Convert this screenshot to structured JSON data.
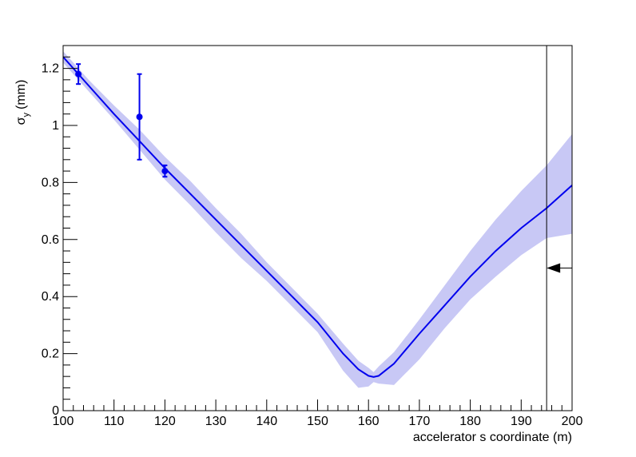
{
  "chart_data": {
    "type": "line",
    "xlabel": "accelerator s coordinate (m)",
    "ylabel_main": "σ",
    "ylabel_sub": "y",
    "ylabel_unit": "(mm)",
    "xlim": [
      100,
      200
    ],
    "ylim": [
      0,
      1.28
    ],
    "x_ticks": [
      100,
      110,
      120,
      130,
      140,
      150,
      160,
      170,
      180,
      190,
      200
    ],
    "x_tick_labels": [
      "100",
      "110",
      "120",
      "130",
      "140",
      "150",
      "160",
      "170",
      "180",
      "190",
      "200"
    ],
    "y_ticks": [
      0,
      0.2,
      0.4,
      0.6,
      0.8,
      1.0,
      1.2
    ],
    "y_tick_labels": [
      "0",
      "0.2",
      "0.4",
      "0.6",
      "0.8",
      "1",
      "1.2"
    ],
    "grid": false,
    "colors": {
      "line": "#0000ee",
      "band": "#c8c8f5",
      "marker": "#0000ee",
      "axis": "#000000"
    },
    "fit_curve": {
      "x": [
        100,
        105,
        110,
        115,
        120,
        125,
        130,
        135,
        140,
        145,
        150,
        155,
        158,
        160,
        161,
        162,
        165,
        170,
        175,
        180,
        185,
        190,
        195,
        200
      ],
      "y": [
        1.24,
        1.14,
        1.04,
        0.945,
        0.85,
        0.76,
        0.67,
        0.58,
        0.49,
        0.4,
        0.31,
        0.2,
        0.145,
        0.122,
        0.118,
        0.122,
        0.165,
        0.27,
        0.37,
        0.47,
        0.56,
        0.64,
        0.71,
        0.79
      ],
      "upper": [
        1.26,
        1.16,
        1.07,
        0.985,
        0.89,
        0.805,
        0.71,
        0.62,
        0.52,
        0.43,
        0.34,
        0.235,
        0.175,
        0.15,
        0.135,
        0.155,
        0.205,
        0.32,
        0.44,
        0.56,
        0.67,
        0.77,
        0.86,
        0.97
      ],
      "lower": [
        1.22,
        1.12,
        1.02,
        0.915,
        0.81,
        0.72,
        0.625,
        0.535,
        0.455,
        0.365,
        0.275,
        0.14,
        0.08,
        0.085,
        0.1,
        0.095,
        0.09,
        0.18,
        0.29,
        0.39,
        0.47,
        0.545,
        0.605,
        0.62
      ]
    },
    "measurements": [
      {
        "x": 103,
        "y": 1.18,
        "err": 0.035
      },
      {
        "x": 115,
        "y": 1.03,
        "err": 0.15
      },
      {
        "x": 120,
        "y": 0.84,
        "err": 0.02
      }
    ],
    "vertical_marker_x": 195,
    "arrow_marker_y": 0.5
  }
}
